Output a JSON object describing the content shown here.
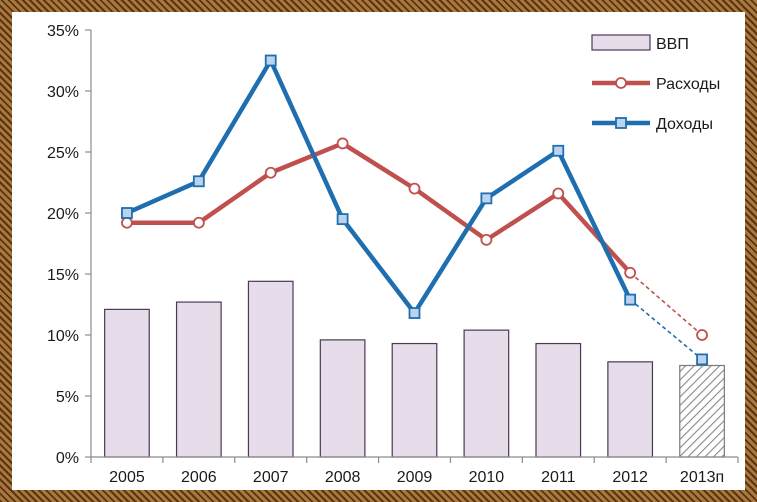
{
  "chart_data": {
    "type": "bar",
    "categories": [
      "2005",
      "2006",
      "2007",
      "2008",
      "2009",
      "2010",
      "2011",
      "2012",
      "2013п"
    ],
    "ylim": [
      0,
      35
    ],
    "yticks": [
      "0%",
      "5%",
      "10%",
      "15%",
      "20%",
      "25%",
      "30%",
      "35%"
    ],
    "grid": false,
    "legend_position": "top-right",
    "bar_series": {
      "name": "ВВП",
      "values": [
        12.1,
        12.7,
        14.4,
        9.6,
        9.3,
        10.4,
        9.3,
        7.8,
        7.5
      ],
      "forecast_index": 8,
      "color": "#e6dcea",
      "border": "#4a3a55",
      "forecast_hatch_color": "#8a8a8a"
    },
    "line_series": [
      {
        "name": "Расходы",
        "values": [
          19.2,
          19.2,
          23.3,
          25.7,
          22.0,
          17.8,
          21.6,
          15.1,
          10.0
        ],
        "forecast_from": 7,
        "color": "#c0504d",
        "marker": "circle"
      },
      {
        "name": "Доходы",
        "values": [
          20.0,
          22.6,
          32.5,
          19.5,
          11.8,
          21.2,
          25.1,
          12.9,
          8.0
        ],
        "forecast_from": 7,
        "color": "#1f6fb0",
        "marker": "square"
      }
    ]
  }
}
